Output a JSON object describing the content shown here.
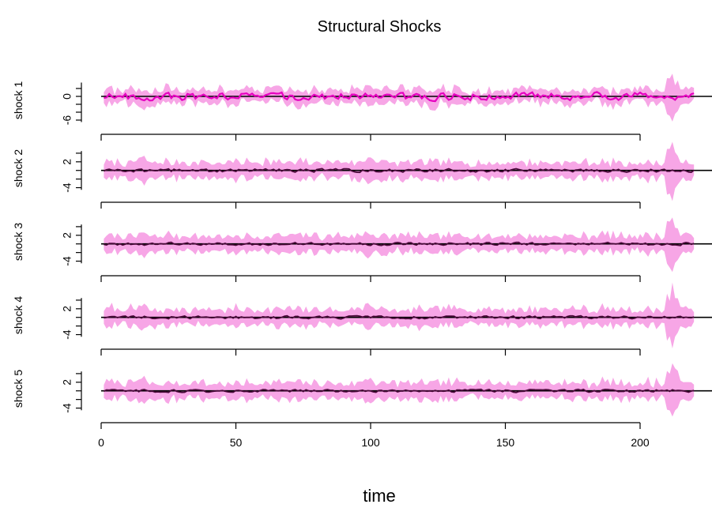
{
  "chart_data": {
    "type": "area",
    "title": "Structural Shocks",
    "xlabel": "time",
    "x_range": [
      1,
      220
    ],
    "xlim": [
      0,
      220
    ],
    "x_ticks": [
      0,
      50,
      100,
      150,
      200
    ],
    "x_tick_labels": [
      "0",
      "50",
      "100",
      "150",
      "200"
    ],
    "grid": false,
    "legend": "none",
    "colors": {
      "band": "#f7a6e6",
      "line_panel_1": "#e600c0",
      "line_other": "#4a0a3a",
      "zero_line": "#000000"
    },
    "panels": [
      {
        "name": "shock 1",
        "ylim": [
          -7,
          5
        ],
        "y_ticks": [
          -6,
          0
        ],
        "y_tick_labels": [
          "-6",
          "0"
        ],
        "band_half_width": 1.7,
        "line_amplitude": 0.9
      },
      {
        "name": "shock 2",
        "ylim": [
          -5,
          6
        ],
        "y_ticks": [
          -4,
          2
        ],
        "y_tick_labels": [
          "-4",
          "2"
        ],
        "band_half_width": 1.8,
        "line_amplitude": 0.35
      },
      {
        "name": "shock 3",
        "ylim": [
          -5,
          6
        ],
        "y_ticks": [
          -4,
          2
        ],
        "y_tick_labels": [
          "-4",
          "2"
        ],
        "band_half_width": 1.8,
        "line_amplitude": 0.3
      },
      {
        "name": "shock 4",
        "ylim": [
          -5,
          6
        ],
        "y_ticks": [
          -4,
          2
        ],
        "y_tick_labels": [
          "-4",
          "2"
        ],
        "band_half_width": 1.8,
        "line_amplitude": 0.3
      },
      {
        "name": "shock 5",
        "ylim": [
          -5,
          6
        ],
        "y_ticks": [
          -4,
          2
        ],
        "y_tick_labels": [
          "-4",
          "2"
        ],
        "band_half_width": 1.8,
        "line_amplitude": 0.3
      }
    ]
  }
}
